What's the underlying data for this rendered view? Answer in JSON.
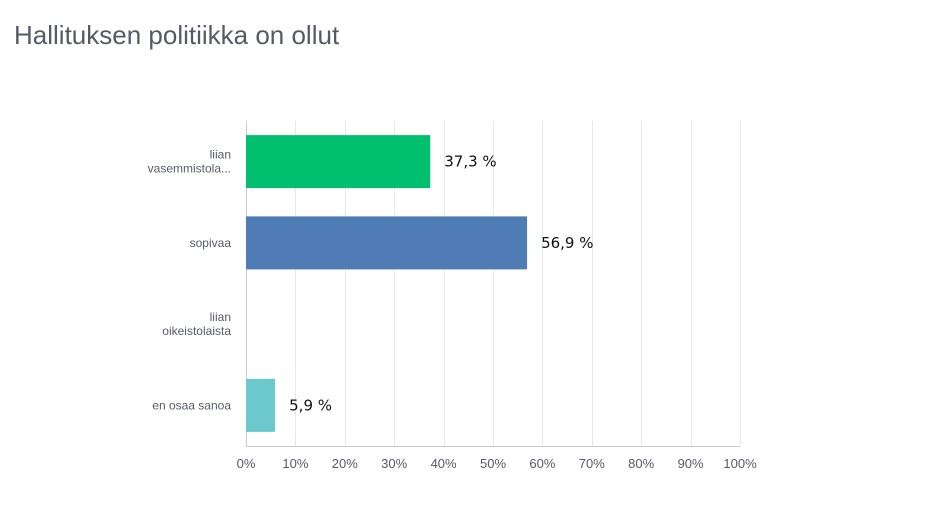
{
  "title": "Hallituksen politiikka on ollut",
  "chart_data": {
    "type": "bar",
    "orientation": "horizontal",
    "title": "Hallituksen politiikka on ollut",
    "categories": [
      [
        "liian",
        "vasemmistola..."
      ],
      [
        "sopivaa"
      ],
      [
        "liian",
        "oikeistolaista"
      ],
      [
        "en osaa sanoa"
      ]
    ],
    "values": [
      37.3,
      56.9,
      0,
      5.9
    ],
    "data_labels": [
      "37,3 %",
      "56,9 %",
      "",
      "5,9 %"
    ],
    "colors": [
      "#00bf6f",
      "#507cb6",
      "#f9be00",
      "#6bc8cd"
    ],
    "xlim": [
      0,
      100
    ],
    "xticks": [
      0,
      10,
      20,
      30,
      40,
      50,
      60,
      70,
      80,
      90,
      100
    ],
    "xtick_labels": [
      "0%",
      "10%",
      "20%",
      "30%",
      "40%",
      "50%",
      "60%",
      "70%",
      "80%",
      "90%",
      "100%"
    ],
    "grid": true
  }
}
